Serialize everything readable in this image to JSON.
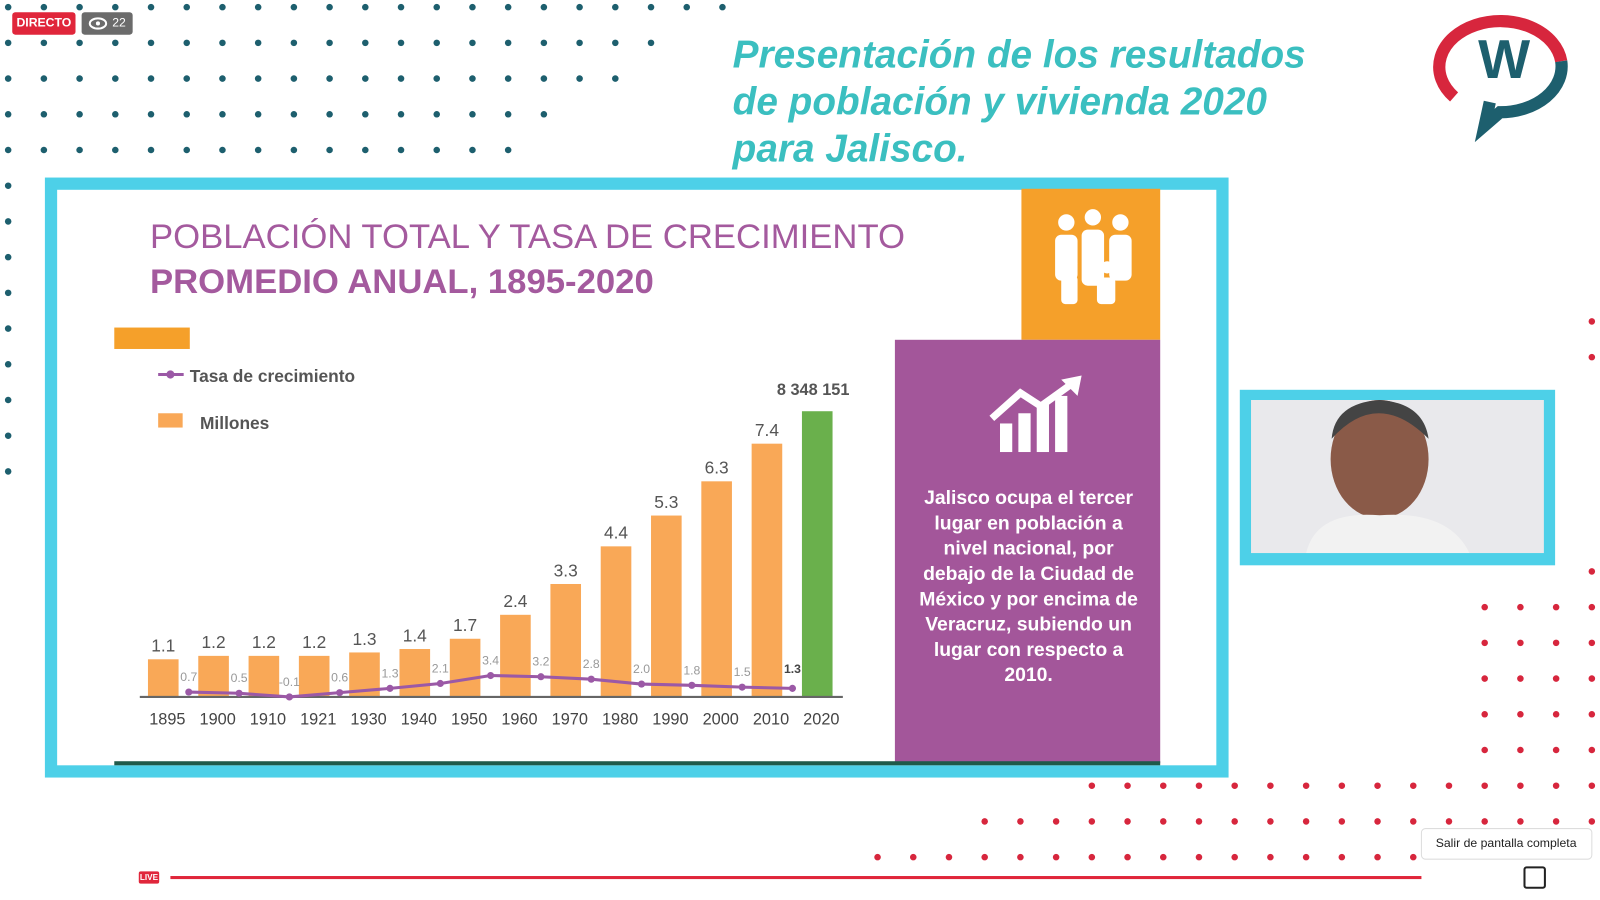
{
  "stream": {
    "live_badge": "DIRECTO",
    "viewers": "22",
    "live_label": "LIVE",
    "tooltip": "Salir de pantalla completa",
    "logo": "W"
  },
  "header": {
    "title_lines": [
      "Presentación de los resultados",
      "de población y vivienda 2020",
      "para Jalisco."
    ]
  },
  "slide": {
    "title_line1": "POBLACIÓN TOTAL Y TASA DE CRECIMIENTO",
    "title_line2": "PROMEDIO ANUAL, 1895-2020",
    "info_lines": [
      "Jalisco ocupa el tercer",
      "lugar en población a",
      "nivel nacional, por",
      "debajo de la Ciudad de",
      "México y por encima de",
      "Veracruz, subiendo un",
      "lugar con respecto a",
      "2010."
    ]
  },
  "chart_data": {
    "type": "bar",
    "categories": [
      "1895",
      "1900",
      "1910",
      "1921",
      "1930",
      "1940",
      "1950",
      "1960",
      "1970",
      "1980",
      "1990",
      "2000",
      "2010",
      "2020"
    ],
    "series": [
      {
        "name": "Millones",
        "color": "#f9a857",
        "highlight_color": "#6ab04c",
        "values": [
          1.1,
          1.2,
          1.2,
          1.2,
          1.3,
          1.4,
          1.7,
          2.4,
          3.3,
          4.4,
          5.3,
          6.3,
          7.4,
          8.348151
        ],
        "value_labels": [
          null,
          null,
          null,
          null,
          null,
          null,
          null,
          null,
          null,
          null,
          null,
          null,
          null,
          "8 348 151"
        ]
      },
      {
        "name": "Tasa de crecimiento",
        "color": "#9b59a6",
        "axis": "y2",
        "values": [
          0.7,
          0.5,
          -0.1,
          0.6,
          1.3,
          2.1,
          3.4,
          3.2,
          2.8,
          2.0,
          1.8,
          1.5,
          1.3,
          null
        ],
        "value_labels": [
          null,
          null,
          null,
          null,
          null,
          null,
          null,
          null,
          null,
          "2.0",
          null,
          null,
          null,
          null
        ]
      }
    ]
  }
}
